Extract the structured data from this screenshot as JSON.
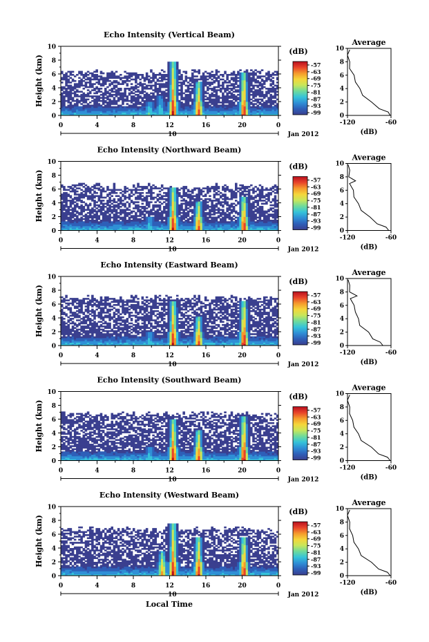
{
  "colors": {
    "background": "#ffffff",
    "no_data": "#ffffff",
    "colormap": [
      "#3a3f8f",
      "#2e5fb8",
      "#2f8fd6",
      "#36c3d9",
      "#6fdb9b",
      "#c8e65a",
      "#f5d63a",
      "#f59a2c",
      "#e8432a",
      "#b80f1e"
    ]
  },
  "colorbar": {
    "label": "(dB)",
    "ticks": [
      "-57",
      "-63",
      "-69",
      "-75",
      "-81",
      "-87",
      "-93",
      "-99"
    ]
  },
  "average_panel": {
    "title": "Average",
    "xlabel": "(dB)",
    "xticks": [
      "-120",
      "-60"
    ],
    "xlim": [
      -120,
      -60
    ]
  },
  "x_axis": {
    "ticks": [
      "0",
      "4",
      "8",
      "12",
      "16",
      "20",
      "0"
    ],
    "date_mark": "10",
    "date_label": "Jan 2012",
    "xlabel": "Local Time"
  },
  "y_axis": {
    "label": "Height (km)",
    "ticks": [
      "0",
      "2",
      "4",
      "6",
      "8",
      "10"
    ]
  },
  "chart_data": [
    {
      "type": "heatmap",
      "title": "Echo Intensity (Vertical Beam)",
      "x_range_hours": [
        0,
        24
      ],
      "y_range_km": [
        0,
        10
      ],
      "value_range_db": [
        -99,
        -57
      ],
      "cloud_top_km": 6.3,
      "rain_events": [
        {
          "time_h": 12.4,
          "peak_db": -57,
          "top_km": 7.8
        },
        {
          "time_h": 15.2,
          "peak_db": -60,
          "top_km": 5.0
        },
        {
          "time_h": 20.2,
          "peak_db": -58,
          "top_km": 6.2
        },
        {
          "time_h": 9.8,
          "peak_db": -80,
          "top_km": 2.0
        },
        {
          "time_h": 11.0,
          "peak_db": -82,
          "top_km": 3.0
        }
      ],
      "average_profile": {
        "height_km": [
          0,
          0.5,
          1,
          2,
          3,
          4,
          5,
          6,
          7,
          8,
          9,
          9.8
        ],
        "intensity_db": [
          -60,
          -65,
          -75,
          -88,
          -98,
          -104,
          -108,
          -112,
          -116,
          -118,
          -119,
          -118
        ]
      }
    },
    {
      "type": "heatmap",
      "title": "Echo Intensity (Northward Beam)",
      "x_range_hours": [
        0,
        24
      ],
      "y_range_km": [
        0,
        10
      ],
      "value_range_db": [
        -99,
        -57
      ],
      "cloud_top_km": 6.5,
      "rain_events": [
        {
          "time_h": 12.4,
          "peak_db": -57,
          "top_km": 6.2
        },
        {
          "time_h": 15.2,
          "peak_db": -60,
          "top_km": 4.2
        },
        {
          "time_h": 20.2,
          "peak_db": -58,
          "top_km": 5.0
        },
        {
          "time_h": 9.8,
          "peak_db": -82,
          "top_km": 2.0
        }
      ],
      "average_profile": {
        "height_km": [
          0,
          0.5,
          1,
          2,
          3,
          4,
          5,
          6,
          7,
          7.4,
          8,
          9,
          9.8
        ],
        "intensity_db": [
          -62,
          -68,
          -78,
          -90,
          -100,
          -106,
          -110,
          -113,
          -116,
          -110,
          -117,
          -118,
          -118
        ]
      }
    },
    {
      "type": "heatmap",
      "title": "Echo Intensity (Eastward Beam)",
      "x_range_hours": [
        0,
        24
      ],
      "y_range_km": [
        0,
        10
      ],
      "value_range_db": [
        -99,
        -57
      ],
      "cloud_top_km": 7.0,
      "rain_events": [
        {
          "time_h": 12.4,
          "peak_db": -57,
          "top_km": 6.5
        },
        {
          "time_h": 15.2,
          "peak_db": -60,
          "top_km": 4.2
        },
        {
          "time_h": 20.2,
          "peak_db": -57,
          "top_km": 6.5
        },
        {
          "time_h": 9.8,
          "peak_db": -82,
          "top_km": 2.0
        }
      ],
      "average_profile": {
        "height_km": [
          0,
          0.5,
          1,
          2,
          3,
          4,
          5,
          6,
          7,
          7.4,
          8,
          9,
          9.8
        ],
        "intensity_db": [
          -70,
          -76,
          -84,
          -92,
          -102,
          -106,
          -108,
          -112,
          -115,
          -108,
          -116,
          -118,
          -118
        ]
      }
    },
    {
      "type": "heatmap",
      "title": "Echo Intensity (Southward Beam)",
      "x_range_hours": [
        0,
        24
      ],
      "y_range_km": [
        0,
        10
      ],
      "value_range_db": [
        -99,
        -57
      ],
      "cloud_top_km": 6.8,
      "rain_events": [
        {
          "time_h": 12.4,
          "peak_db": -57,
          "top_km": 6.0
        },
        {
          "time_h": 15.2,
          "peak_db": -60,
          "top_km": 4.5
        },
        {
          "time_h": 20.2,
          "peak_db": -57,
          "top_km": 6.5
        },
        {
          "time_h": 9.8,
          "peak_db": -82,
          "top_km": 2.0
        }
      ],
      "average_profile": {
        "height_km": [
          0,
          0.5,
          1,
          2,
          3,
          4,
          5,
          6,
          7,
          8,
          9,
          9.8
        ],
        "intensity_db": [
          -60,
          -66,
          -76,
          -88,
          -100,
          -106,
          -110,
          -114,
          -116,
          -118,
          -119,
          -118
        ]
      }
    },
    {
      "type": "heatmap",
      "title": "Echo Intensity (Westward Beam)",
      "x_range_hours": [
        0,
        24
      ],
      "y_range_km": [
        0,
        10
      ],
      "value_range_db": [
        -99,
        -57
      ],
      "cloud_top_km": 6.8,
      "rain_events": [
        {
          "time_h": 12.4,
          "peak_db": -57,
          "top_km": 7.5
        },
        {
          "time_h": 15.2,
          "peak_db": -58,
          "top_km": 5.5
        },
        {
          "time_h": 20.2,
          "peak_db": -58,
          "top_km": 5.5
        },
        {
          "time_h": 11.2,
          "peak_db": -65,
          "top_km": 3.5
        }
      ],
      "average_profile": {
        "height_km": [
          0,
          0.5,
          1,
          2,
          3,
          4,
          5,
          6,
          7,
          8,
          9,
          9.8
        ],
        "intensity_db": [
          -60,
          -66,
          -76,
          -88,
          -100,
          -106,
          -110,
          -114,
          -116,
          -118,
          -119,
          -118
        ]
      }
    }
  ]
}
